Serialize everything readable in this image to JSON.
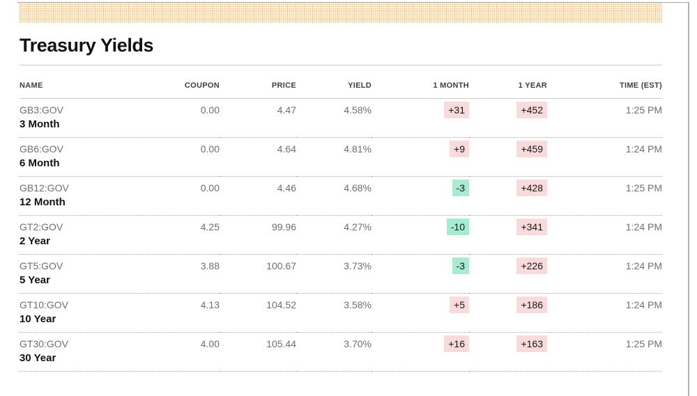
{
  "page": {
    "title": "Treasury Yields"
  },
  "colors": {
    "badge_up_bg": "#fadbdc",
    "badge_down_bg": "#a5ecd0",
    "band_bg": "#fdf4e5",
    "band_grid_line": "#f5dab2",
    "text_primary": "#121212",
    "text_secondary": "#6f6f6f",
    "rule_solid": "#cccccc",
    "rule_dotted": "#a9a9a9"
  },
  "table": {
    "columns": [
      "NAME",
      "COUPON",
      "PRICE",
      "YIELD",
      "1 MONTH",
      "1 YEAR",
      "TIME (EST)"
    ],
    "rows": [
      {
        "ticker": "GB3:GOV",
        "name": "3 Month",
        "coupon": "0.00",
        "price": "4.47",
        "yield": "4.58%",
        "one_month": "+31",
        "one_month_dir": "up",
        "one_year": "+452",
        "one_year_dir": "up",
        "time": "1:25 PM"
      },
      {
        "ticker": "GB6:GOV",
        "name": "6 Month",
        "coupon": "0.00",
        "price": "4.64",
        "yield": "4.81%",
        "one_month": "+9",
        "one_month_dir": "up",
        "one_year": "+459",
        "one_year_dir": "up",
        "time": "1:24 PM"
      },
      {
        "ticker": "GB12:GOV",
        "name": "12 Month",
        "coupon": "0.00",
        "price": "4.46",
        "yield": "4.68%",
        "one_month": "-3",
        "one_month_dir": "down",
        "one_year": "+428",
        "one_year_dir": "up",
        "time": "1:25 PM"
      },
      {
        "ticker": "GT2:GOV",
        "name": "2 Year",
        "coupon": "4.25",
        "price": "99.96",
        "yield": "4.27%",
        "one_month": "-10",
        "one_month_dir": "down",
        "one_year": "+341",
        "one_year_dir": "up",
        "time": "1:24 PM"
      },
      {
        "ticker": "GT5:GOV",
        "name": "5 Year",
        "coupon": "3.88",
        "price": "100.67",
        "yield": "3.73%",
        "one_month": "-3",
        "one_month_dir": "down",
        "one_year": "+226",
        "one_year_dir": "up",
        "time": "1:24 PM"
      },
      {
        "ticker": "GT10:GOV",
        "name": "10 Year",
        "coupon": "4.13",
        "price": "104.52",
        "yield": "3.58%",
        "one_month": "+5",
        "one_month_dir": "up",
        "one_year": "+186",
        "one_year_dir": "up",
        "time": "1:24 PM"
      },
      {
        "ticker": "GT30:GOV",
        "name": "30 Year",
        "coupon": "4.00",
        "price": "105.44",
        "yield": "3.70%",
        "one_month": "+16",
        "one_month_dir": "up",
        "one_year": "+163",
        "one_year_dir": "up",
        "time": "1:25 PM"
      }
    ]
  }
}
